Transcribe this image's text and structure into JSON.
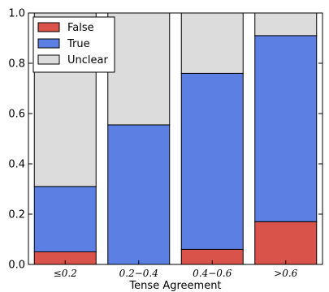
{
  "chart_data": {
    "type": "bar",
    "stacked": true,
    "normalized": true,
    "categories": [
      "≤0.2",
      "0.2−0.4",
      "0.4−0.6",
      ">0.6"
    ],
    "series": [
      {
        "name": "False",
        "color": "#d9534a",
        "values": [
          0.05,
          0.0,
          0.06,
          0.17
        ]
      },
      {
        "name": "True",
        "color": "#5b7fe3",
        "values": [
          0.26,
          0.555,
          0.7,
          0.74
        ]
      },
      {
        "name": "Unclear",
        "color": "#dcdcdc",
        "values": [
          0.69,
          0.445,
          0.24,
          0.09
        ]
      }
    ],
    "xlabel": "Tense Agreement",
    "ylabel": "",
    "ylim": [
      0,
      1.0
    ],
    "yticks": [
      "0.0",
      "0.2",
      "0.4",
      "0.6",
      "0.8",
      "1.0"
    ],
    "legend_position": "top-left",
    "grid": false
  }
}
